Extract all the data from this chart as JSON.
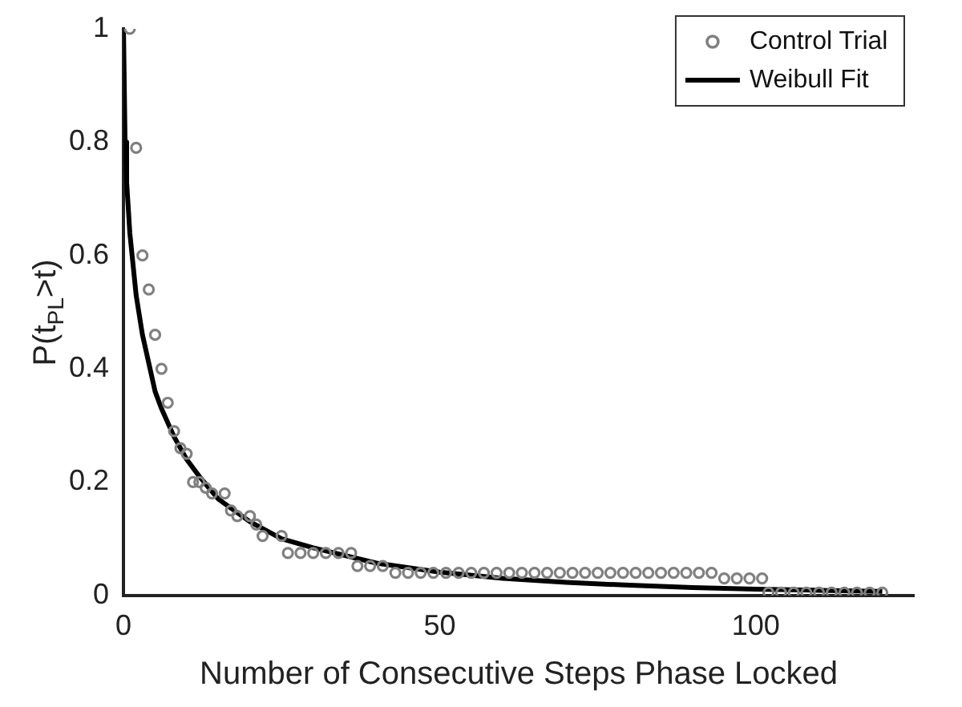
{
  "chart_data": {
    "type": "scatter",
    "xlabel": "Number of Consecutive Steps Phase Locked",
    "ylabel": "P(t$_{PL}$>t)",
    "xlim": [
      0,
      125
    ],
    "xticks": [
      0,
      50,
      100
    ],
    "ylim": [
      0,
      1
    ],
    "yticks": [
      0,
      0.2,
      0.4,
      0.6,
      0.8,
      1
    ],
    "grid": false,
    "legend": "top right",
    "series": [
      {
        "name": "Control Trial",
        "type": "scatter",
        "marker": "circle",
        "color": "#808080",
        "x": [
          1,
          2,
          3,
          4,
          5,
          6,
          7,
          8,
          9,
          10,
          11,
          12,
          13,
          14,
          16,
          17,
          18,
          20,
          21,
          22,
          25,
          26,
          28,
          30,
          32,
          34,
          36,
          37,
          39,
          41,
          43,
          45,
          47,
          49,
          51,
          53,
          55,
          57,
          59,
          61,
          63,
          65,
          67,
          69,
          71,
          73,
          75,
          77,
          79,
          81,
          83,
          85,
          87,
          89,
          91,
          93,
          95,
          97,
          99,
          101,
          102,
          104,
          106,
          108,
          110,
          112,
          114,
          116,
          118,
          120
        ],
        "values": [
          1,
          0.79,
          0.6,
          0.54,
          0.46,
          0.4,
          0.34,
          0.29,
          0.26,
          0.25,
          0.2,
          0.2,
          0.19,
          0.18,
          0.18,
          0.15,
          0.14,
          0.14,
          0.125,
          0.105,
          0.105,
          0.075,
          0.075,
          0.075,
          0.075,
          0.075,
          0.075,
          0.052,
          0.052,
          0.052,
          0.04,
          0.04,
          0.04,
          0.04,
          0.04,
          0.04,
          0.04,
          0.04,
          0.04,
          0.04,
          0.04,
          0.04,
          0.04,
          0.04,
          0.04,
          0.04,
          0.04,
          0.04,
          0.04,
          0.04,
          0.04,
          0.04,
          0.04,
          0.04,
          0.04,
          0.04,
          0.03,
          0.03,
          0.03,
          0.03,
          0.005,
          0.005,
          0.005,
          0.005,
          0.005,
          0.005,
          0.005,
          0.005,
          0.005,
          0.005
        ]
      },
      {
        "name": "Weibull Fit",
        "type": "line",
        "marker": "none",
        "line_style": "solid",
        "color": "#000000",
        "x": [
          0,
          0.25,
          0.5,
          1,
          2,
          3,
          4,
          5,
          6,
          8,
          10,
          12,
          15,
          20,
          25,
          30,
          40,
          50,
          60,
          70,
          80,
          90,
          100,
          110,
          120
        ],
        "values": [
          1,
          0.8,
          0.73,
          0.64,
          0.53,
          0.46,
          0.41,
          0.36,
          0.33,
          0.28,
          0.24,
          0.21,
          0.17,
          0.13,
          0.1,
          0.084,
          0.057,
          0.041,
          0.03,
          0.023,
          0.018,
          0.014,
          0.011,
          0.009,
          0.007
        ]
      }
    ]
  }
}
